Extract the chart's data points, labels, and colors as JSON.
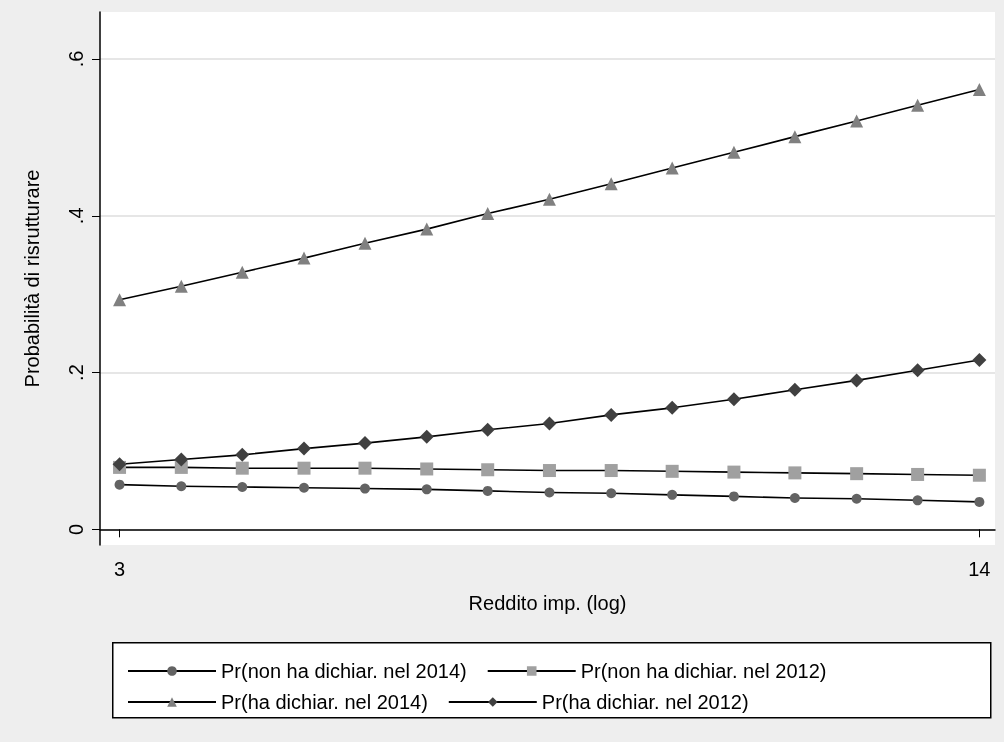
{
  "chart_data": {
    "type": "line",
    "xlabel": "Reddito imp. (log)",
    "ylabel": "Probabilità di risrutturare",
    "x": [
      3,
      3.79,
      4.57,
      5.36,
      6.14,
      6.93,
      7.71,
      8.5,
      9.29,
      10.07,
      10.86,
      11.64,
      12.43,
      13.21,
      14
    ],
    "xlim": [
      2.75,
      14.2
    ],
    "xticks": [
      3,
      14
    ],
    "ylim": [
      -0.02,
      0.66
    ],
    "yticks": [
      {
        "value": 0,
        "label": "0"
      },
      {
        "value": 0.2,
        "label": ".2"
      },
      {
        "value": 0.4,
        "label": ".4"
      },
      {
        "value": 0.6,
        "label": ".6"
      }
    ],
    "grid": "y",
    "legend": "bottom",
    "series": [
      {
        "name": "Pr(non ha dichiar. nel 2014)",
        "color": "#636363",
        "marker": "circle",
        "values": [
          0.057,
          0.055,
          0.054,
          0.053,
          0.052,
          0.051,
          0.049,
          0.047,
          0.046,
          0.044,
          0.042,
          0.04,
          0.039,
          0.037,
          0.035
        ]
      },
      {
        "name": "Pr(non ha dichiar. nel 2012)",
        "color": "#a0a0a0",
        "marker": "square",
        "values": [
          0.079,
          0.079,
          0.078,
          0.078,
          0.078,
          0.077,
          0.076,
          0.075,
          0.075,
          0.074,
          0.073,
          0.072,
          0.071,
          0.07,
          0.069
        ]
      },
      {
        "name": "Pr(ha dichiar. nel 2014)",
        "color": "#808080",
        "marker": "triangle",
        "values": [
          0.293,
          0.31,
          0.328,
          0.346,
          0.365,
          0.383,
          0.403,
          0.421,
          0.441,
          0.461,
          0.481,
          0.501,
          0.521,
          0.541,
          0.561
        ]
      },
      {
        "name": "Pr(ha dichiar. nel 2012)",
        "color": "#404040",
        "marker": "diamond",
        "values": [
          0.083,
          0.089,
          0.095,
          0.103,
          0.11,
          0.118,
          0.127,
          0.135,
          0.146,
          0.155,
          0.166,
          0.178,
          0.19,
          0.203,
          0.216
        ]
      }
    ]
  }
}
